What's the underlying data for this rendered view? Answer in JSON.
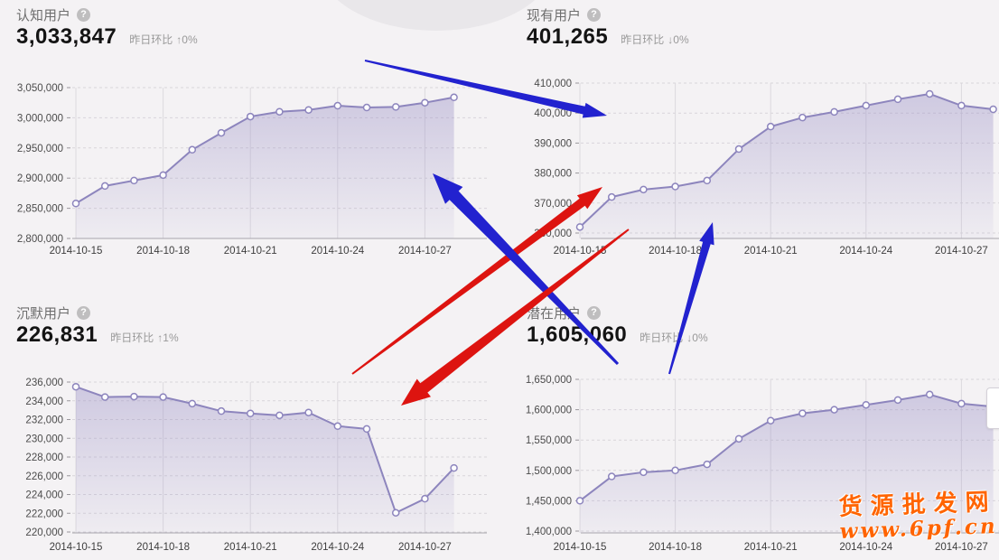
{
  "page": {
    "background": "#f4f2f4"
  },
  "icons": {
    "help": "?"
  },
  "cards": [
    {
      "title": "认知用户",
      "value": "3,033,847",
      "compare_label": "昨日环比",
      "delta": "↑0%"
    },
    {
      "title": "现有用户",
      "value": "401,265",
      "compare_label": "昨日环比",
      "delta": "↓0%"
    },
    {
      "title": "沉默用户",
      "value": "226,831",
      "compare_label": "昨日环比",
      "delta": "↑1%"
    },
    {
      "title": "潜在用户",
      "value": "1,605,060",
      "compare_label": "昨日环比",
      "delta": "↓0%"
    }
  ],
  "chart_data": [
    {
      "type": "area",
      "title": "认知用户",
      "x": [
        "2014-10-15",
        "2014-10-16",
        "2014-10-17",
        "2014-10-18",
        "2014-10-19",
        "2014-10-20",
        "2014-10-21",
        "2014-10-22",
        "2014-10-23",
        "2014-10-24",
        "2014-10-25",
        "2014-10-26",
        "2014-10-27",
        "2014-10-28"
      ],
      "values": [
        2858000,
        2887000,
        2896000,
        2905000,
        2947000,
        2975000,
        3002000,
        3010000,
        3013000,
        3020000,
        3017000,
        3018000,
        3025000,
        3033847
      ],
      "ylim": [
        2800000,
        3050000
      ],
      "ytick_step": 50000,
      "xtick_every": 3,
      "grid": true,
      "legend": "none",
      "line_color": "#8d85bd",
      "fill_color": "#9b91c6"
    },
    {
      "type": "area",
      "title": "现有用户",
      "x": [
        "2014-10-15",
        "2014-10-16",
        "2014-10-17",
        "2014-10-18",
        "2014-10-19",
        "2014-10-20",
        "2014-10-21",
        "2014-10-22",
        "2014-10-23",
        "2014-10-24",
        "2014-10-25",
        "2014-10-26",
        "2014-10-27",
        "2014-10-28"
      ],
      "values": [
        362000,
        372000,
        374500,
        375500,
        377500,
        388000,
        395500,
        398500,
        400400,
        402500,
        404600,
        406400,
        402500,
        401265
      ],
      "ylim": [
        360000,
        410000
      ],
      "ytick_step": 10000,
      "xtick_every": 3,
      "grid": true,
      "legend": "none",
      "line_color": "#8d85bd",
      "fill_color": "#9b91c6"
    },
    {
      "type": "area",
      "title": "沉默用户",
      "x": [
        "2014-10-15",
        "2014-10-16",
        "2014-10-17",
        "2014-10-18",
        "2014-10-19",
        "2014-10-20",
        "2014-10-21",
        "2014-10-22",
        "2014-10-23",
        "2014-10-24",
        "2014-10-25",
        "2014-10-26",
        "2014-10-27",
        "2014-10-28"
      ],
      "values": [
        235500,
        234400,
        234450,
        234400,
        233700,
        232900,
        232650,
        232450,
        232750,
        231300,
        231000,
        222050,
        223550,
        226831
      ],
      "ylim": [
        220000,
        236000
      ],
      "ytick_step": 2000,
      "xtick_every": 3,
      "grid": true,
      "legend": "none",
      "line_color": "#8d85bd",
      "fill_color": "#9b91c6"
    },
    {
      "type": "area",
      "title": "潜在用户",
      "x": [
        "2014-10-15",
        "2014-10-16",
        "2014-10-17",
        "2014-10-18",
        "2014-10-19",
        "2014-10-20",
        "2014-10-21",
        "2014-10-22",
        "2014-10-23",
        "2014-10-24",
        "2014-10-25",
        "2014-10-26",
        "2014-10-27",
        "2014-10-28"
      ],
      "values": [
        1450000,
        1490000,
        1497000,
        1500000,
        1510000,
        1552000,
        1582000,
        1594000,
        1600000,
        1608000,
        1616000,
        1625000,
        1610000,
        1605060
      ],
      "ylim": [
        1400000,
        1650000
      ],
      "ytick_step": 50000,
      "xtick_every": 3,
      "grid": true,
      "legend": "none",
      "line_color": "#8d85bd",
      "fill_color": "#9b91c6"
    }
  ],
  "annotations": {
    "arrows": [
      {
        "name": "blue-arrow-top-right",
        "color": "#2222cf",
        "tail": [
          404,
          67
        ],
        "head": [
          672,
          128
        ],
        "tail_w": 2,
        "shaft_w": 9,
        "head_len": 26,
        "flare": 17
      },
      {
        "name": "red-arrow-up-right",
        "color": "#dd1410",
        "tail": [
          390,
          414
        ],
        "head": [
          667,
          207
        ],
        "tail_w": 2,
        "shaft_w": 10,
        "head_len": 28,
        "flare": 19
      },
      {
        "name": "blue-arrow-big-upleft",
        "color": "#2222cf",
        "tail": [
          684,
          403
        ],
        "head": [
          479,
          192
        ],
        "tail_w": 3,
        "shaft_w": 14,
        "head_len": 34,
        "flare": 27
      },
      {
        "name": "red-arrow-big-downleft",
        "color": "#dd1410",
        "tail": [
          696,
          254
        ],
        "head": [
          444,
          449
        ],
        "tail_w": 2,
        "shaft_w": 13,
        "head_len": 32,
        "flare": 25
      },
      {
        "name": "blue-arrow-small-up",
        "color": "#2222cf",
        "tail": [
          741,
          414
        ],
        "head": [
          789,
          246
        ],
        "tail_w": 2,
        "shaft_w": 9,
        "head_len": 24,
        "flare": 17
      }
    ]
  },
  "watermark": {
    "line1": "货源批发网",
    "line2": "www.6pf.cn",
    "color": "#ff6400"
  }
}
